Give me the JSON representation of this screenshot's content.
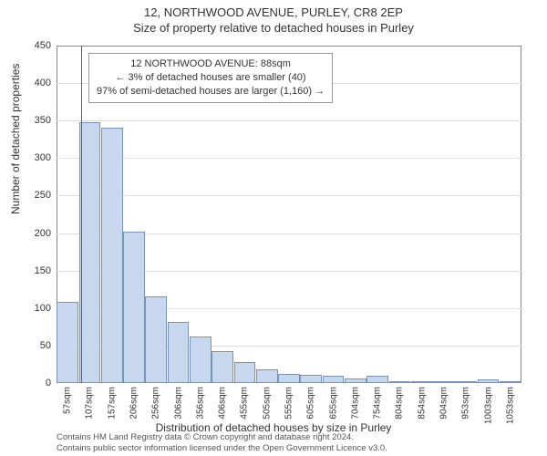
{
  "title_line1": "12, NORTHWOOD AVENUE, PURLEY, CR8 2EP",
  "title_line2": "Size of property relative to detached houses in Purley",
  "y_axis_title": "Number of detached properties",
  "x_axis_title": "Distribution of detached houses by size in Purley",
  "chart": {
    "type": "bar",
    "ylim": [
      0,
      450
    ],
    "ytick_step": 50,
    "x_labels": [
      "57sqm",
      "107sqm",
      "157sqm",
      "206sqm",
      "256sqm",
      "306sqm",
      "356sqm",
      "406sqm",
      "455sqm",
      "505sqm",
      "555sqm",
      "605sqm",
      "655sqm",
      "704sqm",
      "754sqm",
      "804sqm",
      "854sqm",
      "904sqm",
      "953sqm",
      "1003sqm",
      "1053sqm"
    ],
    "values": [
      108,
      348,
      340,
      202,
      115,
      82,
      62,
      42,
      28,
      18,
      12,
      11,
      10,
      6,
      10,
      2,
      3,
      2,
      0,
      5,
      2
    ],
    "bar_fill": "#c7d7ee",
    "bar_stroke": "#7a93b8",
    "grid_color": "#dddddd",
    "background": "#ffffff",
    "reference_line": {
      "x_value": 88,
      "x_min": 57,
      "x_step": 50,
      "color": "#cc3333"
    }
  },
  "annotation": {
    "line1": "12 NORTHWOOD AVENUE: 88sqm",
    "line2": "← 3% of detached houses are smaller (40)",
    "line3": "97% of semi-detached houses are larger (1,160) →",
    "border": "#999999"
  },
  "footer_line1": "Contains HM Land Registry data © Crown copyright and database right 2024.",
  "footer_line2": "Contains public sector information licensed under the Open Government Licence v3.0."
}
